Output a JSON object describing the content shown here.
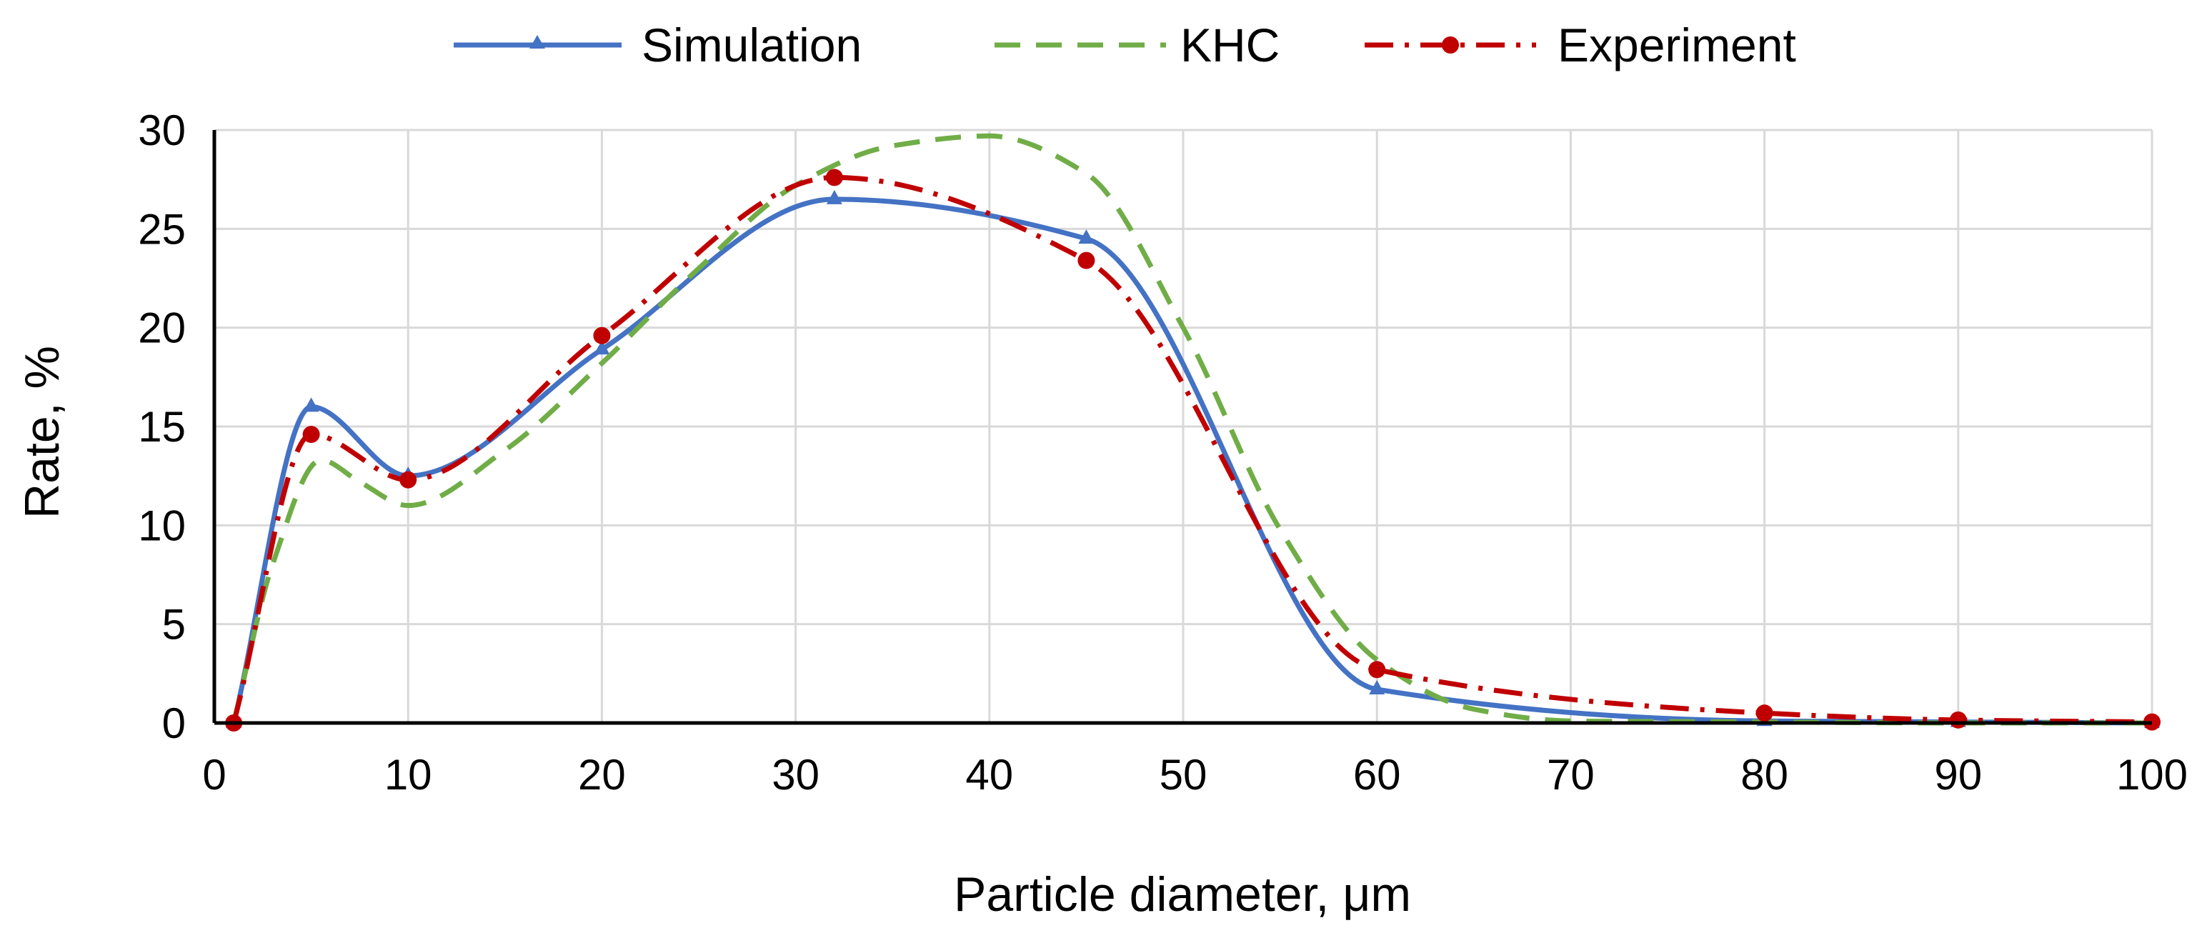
{
  "chart_data": {
    "type": "line",
    "xlabel": "Particle diameter, μm",
    "ylabel": "Rate, %",
    "xlim": [
      0,
      100
    ],
    "ylim": [
      0,
      30
    ],
    "x_ticks": [
      0,
      10,
      20,
      30,
      40,
      50,
      60,
      70,
      80,
      90,
      100
    ],
    "y_ticks": [
      0,
      5,
      10,
      15,
      20,
      25,
      30
    ],
    "grid": true,
    "legend_position": "top-center",
    "series": [
      {
        "name": "Simulation",
        "color": "#4472c4",
        "style": "solid",
        "marker": "triangle",
        "x": [
          1,
          5,
          10,
          20,
          32,
          45,
          60,
          80,
          90,
          100
        ],
        "y": [
          0,
          16,
          12.5,
          18.9,
          26.5,
          24.5,
          1.7,
          0.1,
          0.05,
          0
        ]
      },
      {
        "name": "KHC",
        "color": "#70ad47",
        "style": "dashed",
        "marker": "none",
        "x": [
          1,
          3,
          5.5,
          7.5,
          10,
          15,
          20,
          25,
          30,
          35,
          40,
          45,
          50,
          55,
          60,
          65,
          70,
          80,
          90,
          100
        ],
        "y": [
          0,
          8,
          13.3,
          12.2,
          11,
          13.8,
          18.2,
          23,
          27.2,
          29.2,
          29.7,
          27.8,
          20,
          9.8,
          3.2,
          0.7,
          0.1,
          0.05,
          0,
          0
        ]
      },
      {
        "name": "Experiment",
        "color": "#c00000",
        "style": "dash-dot",
        "marker": "circle",
        "x": [
          1,
          5,
          10,
          20,
          32,
          45,
          60,
          80,
          90,
          100
        ],
        "y": [
          0,
          14.6,
          12.3,
          19.6,
          27.6,
          23.4,
          2.7,
          0.5,
          0.15,
          0.05
        ]
      }
    ]
  }
}
